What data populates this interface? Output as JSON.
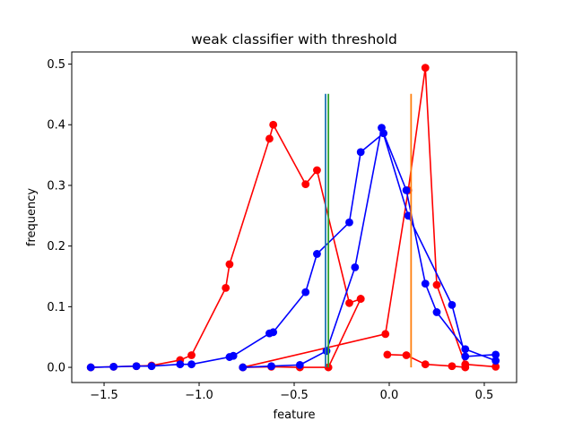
{
  "chart_data": {
    "type": "line",
    "title": "weak classifier with threshold",
    "xlabel": "feature",
    "ylabel": "frequency",
    "xlim": [
      -1.67,
      0.67
    ],
    "ylim": [
      -0.025,
      0.52
    ],
    "xticks": [
      -1.5,
      -1.0,
      -0.5,
      0.0,
      0.5
    ],
    "xtick_labels": [
      "−1.5",
      "−1.0",
      "−0.5",
      "0.0",
      "0.5"
    ],
    "yticks": [
      0.0,
      0.1,
      0.2,
      0.3,
      0.4,
      0.5
    ],
    "ytick_labels": [
      "0.0",
      "0.1",
      "0.2",
      "0.3",
      "0.4",
      "0.5"
    ],
    "grid": false,
    "series": [
      {
        "color": "#ff0000",
        "marker": "circle",
        "x": [
          -1.57,
          -1.45,
          -1.33,
          -1.25,
          -1.1,
          -1.04,
          -0.86,
          -0.84,
          -0.63,
          -0.61,
          -0.44,
          -0.38,
          -0.21,
          -0.15
        ],
        "y": [
          0.0,
          0.001,
          0.002,
          0.003,
          0.012,
          0.02,
          0.131,
          0.17,
          0.377,
          0.4,
          0.302,
          0.325,
          0.106,
          0.113
        ]
      },
      {
        "color": "#ff0000",
        "marker": "circle",
        "x": [
          -0.15,
          -0.32,
          -0.47,
          -0.62,
          -0.77,
          -0.02,
          0.1,
          0.19,
          0.25,
          0.4,
          0.56
        ],
        "y": [
          0.113,
          0.0,
          0.0,
          0.001,
          0.0,
          0.055,
          0.292,
          0.494,
          0.136,
          0.005,
          0.001
        ]
      },
      {
        "color": "#ff0000",
        "marker": "circle",
        "x": [
          -0.01,
          0.09,
          0.19,
          0.33,
          0.4
        ],
        "y": [
          0.021,
          0.02,
          0.005,
          0.002,
          0.0
        ]
      },
      {
        "color": "#0000ff",
        "marker": "circle",
        "x": [
          -1.57,
          -1.45,
          -1.33,
          -1.25,
          -1.1,
          -1.04,
          -0.84,
          -0.82,
          -0.63,
          -0.61,
          -0.44,
          -0.38,
          -0.21,
          -0.15,
          -0.03,
          0.09,
          0.19,
          0.25,
          0.4,
          0.56
        ],
        "y": [
          0.0,
          0.001,
          0.002,
          0.002,
          0.005,
          0.005,
          0.017,
          0.019,
          0.056,
          0.058,
          0.124,
          0.187,
          0.239,
          0.355,
          0.386,
          0.292,
          0.138,
          0.091,
          0.03,
          0.011
        ]
      },
      {
        "color": "#0000ff",
        "marker": "circle",
        "x": [
          -0.77,
          -0.62,
          -0.47,
          -0.33,
          -0.18,
          -0.04,
          0.1,
          0.33,
          0.4,
          0.56
        ],
        "y": [
          0.0,
          0.002,
          0.004,
          0.027,
          0.165,
          0.395,
          0.25,
          0.103,
          0.018,
          0.021
        ]
      }
    ],
    "threshold_lines": [
      {
        "color": "#1f77b4",
        "x": -0.335,
        "y": [
          0.0,
          0.451
        ]
      },
      {
        "color": "#2ca02c",
        "x": -0.32,
        "y": [
          0.0,
          0.451
        ]
      },
      {
        "color": "#ff7f0e",
        "x": 0.115,
        "y": [
          0.0,
          0.451
        ]
      }
    ]
  }
}
